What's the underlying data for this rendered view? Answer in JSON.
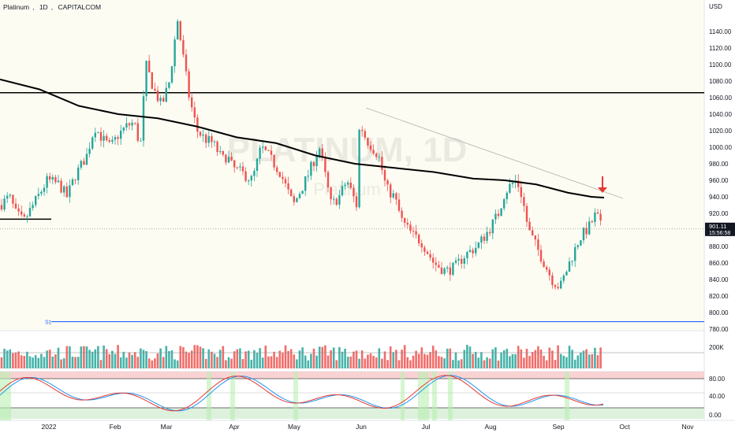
{
  "header": {
    "symbol": "Platinum",
    "interval": "1D",
    "exchange": "CAPITALCOM"
  },
  "watermark": {
    "ticker": "PLATINUM, 1D",
    "name": "Platinum"
  },
  "currency": "USD",
  "colors": {
    "up": "#26a69a",
    "down": "#ef5350",
    "ma": "#000000",
    "resistance": "#000000",
    "support_s1": "#2962ff",
    "trendline": "#b0b0b0",
    "stoch_k": "#2196f3",
    "stoch_d": "#e53935",
    "bg_price": "#fdfcf3",
    "arrow": "#e53935"
  },
  "price_axis_ticks": [
    "1140.00",
    "1120.00",
    "1100.00",
    "1080.00",
    "1060.00",
    "1040.00",
    "1020.00",
    "1000.00",
    "980.00",
    "960.00",
    "940.00",
    "920.00",
    "900.00",
    "880.00",
    "860.00",
    "840.00",
    "820.00",
    "800.00",
    "780.00"
  ],
  "last_price": {
    "value": "901.11",
    "countdown": "15:56:58"
  },
  "volume_axis_label": "200K",
  "oscillator_axis_ticks": [
    "80.00",
    "40.00",
    "0.00"
  ],
  "time_labels": [
    "2022",
    "Feb",
    "Mar",
    "Apr",
    "May",
    "Jun",
    "Jul",
    "Aug",
    "Sep",
    "Oct",
    "Nov"
  ],
  "support_label": "S1",
  "chart_data": {
    "type": "candlestick",
    "instrument": "Platinum",
    "interval": "1D",
    "ylim": [
      775,
      1160
    ],
    "levels": {
      "resistance": 1066,
      "old_support": 913,
      "S1": 789
    },
    "last": 901.11,
    "series": [
      {
        "name": "price_path_anchors",
        "x": [
          0,
          12,
          20,
          30,
          45,
          60,
          75,
          85,
          95,
          110,
          120,
          130,
          140,
          150,
          160,
          170,
          178,
          185,
          190,
          195,
          205,
          215,
          225,
          240,
          250,
          260,
          270,
          282,
          288,
          295,
          305,
          320,
          331,
          340,
          355,
          372,
          390,
          405,
          420,
          430,
          440,
          452,
          456,
          464,
          480,
          490,
          500,
          510,
          522,
          535,
          550,
          565,
          577,
          590,
          605,
          620,
          632,
          640,
          648,
          655,
          662,
          670,
          680,
          690,
          700,
          710,
          722,
          735,
          748,
          756,
          763
        ],
        "values": [
          930,
          940,
          920,
          910,
          935,
          960,
          955,
          940,
          965,
          990,
          1025,
          1010,
          1000,
          1015,
          1025,
          1030,
          1000,
          1100,
          1085,
          1070,
          1050,
          1080,
          1155,
          1060,
          1020,
          1010,
          1005,
          985,
          990,
          975,
          970,
          960,
          1000,
          990,
          970,
          930,
          965,
          1000,
          930,
          940,
          960,
          930,
          1030,
          1010,
          990,
          950,
          940,
          910,
          895,
          885,
          860,
          850,
          855,
          870,
          880,
          900,
          920,
          945,
          955,
          960,
          940,
          900,
          880,
          860,
          840,
          830,
          860,
          890,
          905,
          920,
          901
        ]
      },
      {
        "name": "MA",
        "x": [
          0,
          50,
          100,
          150,
          200,
          250,
          300,
          350,
          400,
          450,
          500,
          550,
          600,
          640,
          680,
          720,
          750,
          766
        ],
        "values": [
          1082,
          1070,
          1050,
          1040,
          1035,
          1025,
          1012,
          1005,
          990,
          980,
          975,
          970,
          962,
          960,
          955,
          945,
          940,
          939
        ]
      }
    ]
  }
}
